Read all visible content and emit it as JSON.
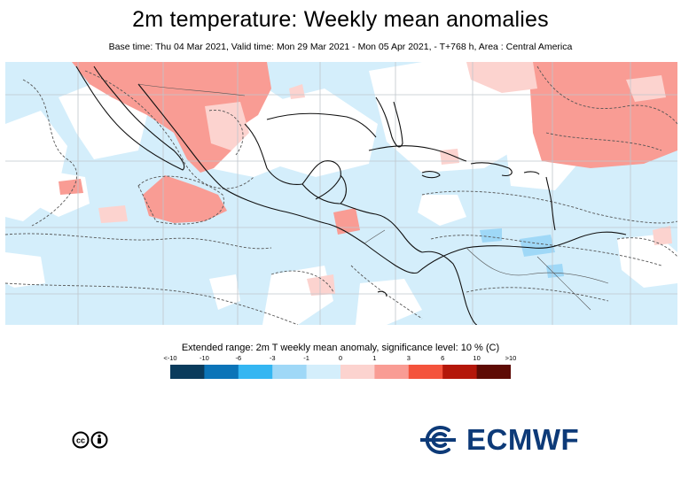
{
  "header": {
    "title": "2m temperature: Weekly mean anomalies",
    "subtitle": "Base time: Thu 04 Mar 2021, Valid time: Mon 29 Mar 2021 - Mon 05 Apr 2021, - T+768 h, Area : Central America"
  },
  "legend": {
    "title": "Extended range: 2m T weekly mean anomaly, significance level: 10 % (C)",
    "bins": [
      {
        "label": "<-10",
        "color": "#0a3b5c"
      },
      {
        "label": "-10",
        "color": "#0b74b8"
      },
      {
        "label": "-6",
        "color": "#34b6f2"
      },
      {
        "label": "-3",
        "color": "#9fd8f7"
      },
      {
        "label": "-1",
        "color": "#d4eefb"
      },
      {
        "label": "0",
        "color": "#fcd3cf"
      },
      {
        "label": "1",
        "color": "#f99c94"
      },
      {
        "label": "3",
        "color": "#f4533c"
      },
      {
        "label": "6",
        "color": "#b4170a"
      },
      {
        "label": "10",
        "color": "#5e0b05"
      },
      {
        "label": ">10",
        "color": ""
      }
    ]
  },
  "map": {
    "cold_color": "#d4eefb",
    "warm_color": "#f99c94",
    "warm_pale_color": "#fcd3cf",
    "coast_color": "#111111",
    "grid_color": "#bfc6cc"
  },
  "footer": {
    "license_icon": "creative-commons-by-icon",
    "logo_text": "ECMWF",
    "logo_color": "#0d3a78"
  }
}
